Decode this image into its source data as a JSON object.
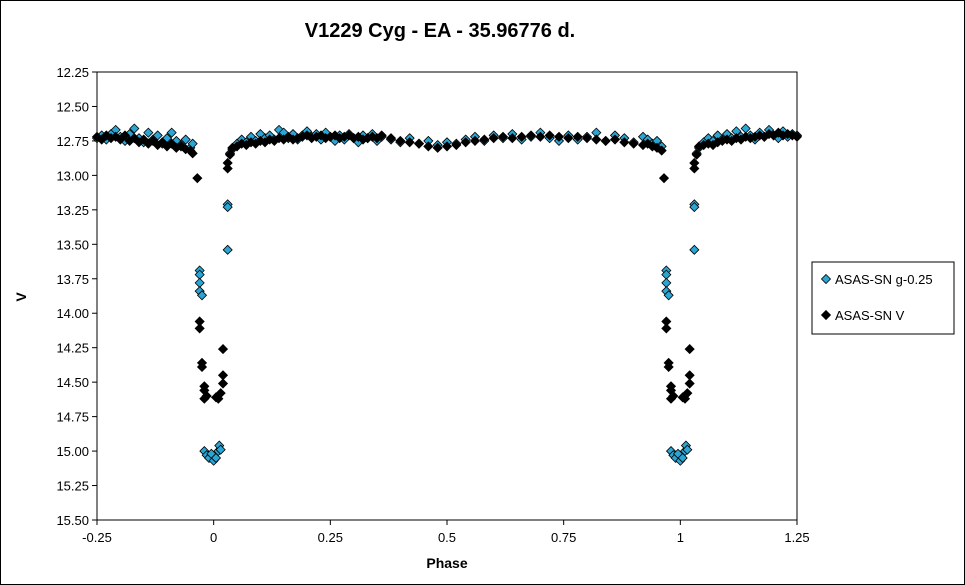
{
  "chart_data": {
    "type": "scatter",
    "title": "V1229 Cyg - EA - 35.96776 d.",
    "xlabel": "Phase",
    "ylabel": "V",
    "xlim": [
      -0.25,
      1.25
    ],
    "ylim": [
      15.5,
      12.25
    ],
    "y_inverted": true,
    "x_ticks": [
      "-0.25",
      "0",
      "0.25",
      "0.5",
      "0.75",
      "1",
      "1.25"
    ],
    "y_ticks": [
      "12.25",
      "12.50",
      "12.75",
      "13.00",
      "13.25",
      "13.50",
      "13.75",
      "14.00",
      "14.25",
      "14.50",
      "14.75",
      "15.00",
      "15.25",
      "15.50"
    ],
    "grid": false,
    "legend_position": "right",
    "series": [
      {
        "name": "ASAS-SN g-0.25",
        "color": "#2aa5d4",
        "marker": "diamond",
        "points": [
          [
            -0.25,
            12.73
          ],
          [
            -0.24,
            12.71
          ],
          [
            -0.23,
            12.74
          ],
          [
            -0.22,
            12.7
          ],
          [
            -0.21,
            12.67
          ],
          [
            -0.2,
            12.72
          ],
          [
            -0.19,
            12.75
          ],
          [
            -0.18,
            12.7
          ],
          [
            -0.17,
            12.66
          ],
          [
            -0.16,
            12.73
          ],
          [
            -0.15,
            12.76
          ],
          [
            -0.14,
            12.69
          ],
          [
            -0.13,
            12.74
          ],
          [
            -0.12,
            12.71
          ],
          [
            -0.11,
            12.77
          ],
          [
            -0.1,
            12.73
          ],
          [
            -0.09,
            12.69
          ],
          [
            -0.08,
            12.75
          ],
          [
            -0.07,
            12.78
          ],
          [
            -0.06,
            12.74
          ],
          [
            -0.05,
            12.8
          ],
          [
            -0.045,
            12.77
          ],
          [
            -0.03,
            13.69
          ],
          [
            -0.03,
            13.72
          ],
          [
            -0.03,
            13.78
          ],
          [
            -0.03,
            13.84
          ],
          [
            -0.025,
            13.87
          ],
          [
            -0.02,
            15.0
          ],
          [
            -0.015,
            15.03
          ],
          [
            -0.01,
            15.05
          ],
          [
            -0.005,
            15.02
          ],
          [
            0.0,
            15.07
          ],
          [
            0.005,
            15.05
          ],
          [
            0.01,
            15.0
          ],
          [
            0.012,
            14.96
          ],
          [
            0.015,
            14.99
          ],
          [
            0.03,
            13.21
          ],
          [
            0.03,
            13.23
          ],
          [
            0.03,
            13.54
          ],
          [
            0.035,
            12.84
          ],
          [
            0.04,
            12.81
          ],
          [
            0.05,
            12.77
          ],
          [
            0.06,
            12.74
          ],
          [
            0.07,
            12.76
          ],
          [
            0.08,
            12.72
          ],
          [
            0.09,
            12.75
          ],
          [
            0.1,
            12.7
          ],
          [
            0.11,
            12.73
          ],
          [
            0.12,
            12.71
          ],
          [
            0.13,
            12.74
          ],
          [
            0.14,
            12.67
          ],
          [
            0.15,
            12.69
          ],
          [
            0.16,
            12.73
          ],
          [
            0.17,
            12.7
          ],
          [
            0.18,
            12.74
          ],
          [
            0.19,
            12.71
          ],
          [
            0.2,
            12.68
          ],
          [
            0.21,
            12.72
          ],
          [
            0.22,
            12.7
          ],
          [
            0.23,
            12.74
          ],
          [
            0.24,
            12.69
          ],
          [
            0.25,
            12.72
          ],
          [
            0.26,
            12.75
          ],
          [
            0.27,
            12.71
          ],
          [
            0.28,
            12.74
          ],
          [
            0.29,
            12.7
          ],
          [
            0.3,
            12.73
          ],
          [
            0.31,
            12.76
          ],
          [
            0.32,
            12.71
          ],
          [
            0.33,
            12.73
          ],
          [
            0.34,
            12.7
          ],
          [
            0.35,
            12.75
          ],
          [
            0.36,
            12.72
          ],
          [
            0.38,
            12.74
          ],
          [
            0.4,
            12.76
          ],
          [
            0.42,
            12.73
          ],
          [
            0.44,
            12.77
          ],
          [
            0.46,
            12.75
          ],
          [
            0.48,
            12.78
          ],
          [
            0.5,
            12.76
          ],
          [
            0.52,
            12.77
          ],
          [
            0.54,
            12.74
          ],
          [
            0.56,
            12.72
          ],
          [
            0.58,
            12.75
          ],
          [
            0.6,
            12.71
          ],
          [
            0.62,
            12.73
          ],
          [
            0.64,
            12.7
          ],
          [
            0.66,
            12.74
          ],
          [
            0.68,
            12.72
          ],
          [
            0.7,
            12.69
          ],
          [
            0.72,
            12.73
          ],
          [
            0.74,
            12.75
          ],
          [
            0.76,
            12.71
          ],
          [
            0.78,
            12.74
          ],
          [
            0.8,
            12.72
          ],
          [
            0.82,
            12.69
          ],
          [
            0.84,
            12.75
          ],
          [
            0.86,
            12.71
          ],
          [
            0.88,
            12.73
          ],
          [
            0.9,
            12.76
          ],
          [
            0.92,
            12.72
          ],
          [
            0.93,
            12.74
          ],
          [
            0.94,
            12.77
          ],
          [
            0.95,
            12.75
          ],
          [
            0.96,
            12.79
          ],
          [
            0.97,
            13.69
          ],
          [
            0.97,
            13.72
          ],
          [
            0.97,
            13.78
          ],
          [
            0.97,
            13.84
          ],
          [
            0.975,
            13.87
          ],
          [
            0.98,
            15.0
          ],
          [
            0.985,
            15.03
          ],
          [
            0.99,
            15.05
          ],
          [
            0.995,
            15.02
          ],
          [
            1.0,
            15.07
          ],
          [
            1.005,
            15.05
          ],
          [
            1.01,
            15.0
          ],
          [
            1.012,
            14.96
          ],
          [
            1.015,
            14.99
          ],
          [
            1.03,
            13.21
          ],
          [
            1.03,
            13.23
          ],
          [
            1.03,
            13.54
          ],
          [
            1.035,
            12.84
          ],
          [
            1.04,
            12.8
          ],
          [
            1.05,
            12.76
          ],
          [
            1.06,
            12.73
          ],
          [
            1.07,
            12.75
          ],
          [
            1.08,
            12.71
          ],
          [
            1.09,
            12.74
          ],
          [
            1.1,
            12.7
          ],
          [
            1.11,
            12.73
          ],
          [
            1.12,
            12.68
          ],
          [
            1.13,
            12.72
          ],
          [
            1.14,
            12.66
          ],
          [
            1.15,
            12.71
          ],
          [
            1.16,
            12.74
          ],
          [
            1.17,
            12.69
          ],
          [
            1.18,
            12.72
          ],
          [
            1.19,
            12.67
          ],
          [
            1.2,
            12.71
          ],
          [
            1.21,
            12.73
          ],
          [
            1.22,
            12.68
          ],
          [
            1.23,
            12.72
          ],
          [
            1.24,
            12.7
          ],
          [
            1.25,
            12.71
          ]
        ]
      },
      {
        "name": "ASAS-SN V",
        "color": "#000000",
        "marker": "diamond",
        "points": [
          [
            -0.25,
            12.72
          ],
          [
            -0.24,
            12.74
          ],
          [
            -0.23,
            12.71
          ],
          [
            -0.22,
            12.73
          ],
          [
            -0.21,
            12.72
          ],
          [
            -0.2,
            12.74
          ],
          [
            -0.19,
            12.71
          ],
          [
            -0.18,
            12.75
          ],
          [
            -0.17,
            12.73
          ],
          [
            -0.16,
            12.76
          ],
          [
            -0.15,
            12.74
          ],
          [
            -0.14,
            12.77
          ],
          [
            -0.13,
            12.75
          ],
          [
            -0.12,
            12.78
          ],
          [
            -0.11,
            12.76
          ],
          [
            -0.1,
            12.79
          ],
          [
            -0.09,
            12.77
          ],
          [
            -0.08,
            12.8
          ],
          [
            -0.07,
            12.79
          ],
          [
            -0.06,
            12.81
          ],
          [
            -0.05,
            12.82
          ],
          [
            -0.045,
            12.84
          ],
          [
            -0.035,
            13.02
          ],
          [
            -0.03,
            14.06
          ],
          [
            -0.03,
            14.11
          ],
          [
            -0.025,
            14.36
          ],
          [
            -0.025,
            14.39
          ],
          [
            -0.02,
            14.53
          ],
          [
            -0.02,
            14.56
          ],
          [
            -0.02,
            14.62
          ],
          [
            -0.015,
            14.6
          ],
          [
            0.005,
            14.61
          ],
          [
            0.01,
            14.62
          ],
          [
            0.015,
            14.58
          ],
          [
            0.02,
            14.26
          ],
          [
            0.02,
            14.45
          ],
          [
            0.02,
            14.51
          ],
          [
            0.03,
            12.91
          ],
          [
            0.03,
            12.95
          ],
          [
            0.035,
            12.85
          ],
          [
            0.04,
            12.8
          ],
          [
            0.05,
            12.79
          ],
          [
            0.06,
            12.77
          ],
          [
            0.07,
            12.78
          ],
          [
            0.08,
            12.76
          ],
          [
            0.09,
            12.77
          ],
          [
            0.1,
            12.75
          ],
          [
            0.11,
            12.76
          ],
          [
            0.12,
            12.74
          ],
          [
            0.13,
            12.75
          ],
          [
            0.14,
            12.73
          ],
          [
            0.15,
            12.74
          ],
          [
            0.16,
            12.72
          ],
          [
            0.17,
            12.74
          ],
          [
            0.18,
            12.73
          ],
          [
            0.19,
            12.72
          ],
          [
            0.2,
            12.71
          ],
          [
            0.21,
            12.73
          ],
          [
            0.22,
            12.72
          ],
          [
            0.23,
            12.71
          ],
          [
            0.24,
            12.73
          ],
          [
            0.25,
            12.72
          ],
          [
            0.26,
            12.71
          ],
          [
            0.27,
            12.73
          ],
          [
            0.28,
            12.72
          ],
          [
            0.29,
            12.71
          ],
          [
            0.3,
            12.73
          ],
          [
            0.31,
            12.72
          ],
          [
            0.32,
            12.74
          ],
          [
            0.33,
            12.73
          ],
          [
            0.34,
            12.72
          ],
          [
            0.35,
            12.73
          ],
          [
            0.36,
            12.71
          ],
          [
            0.38,
            12.73
          ],
          [
            0.4,
            12.75
          ],
          [
            0.42,
            12.76
          ],
          [
            0.44,
            12.77
          ],
          [
            0.46,
            12.79
          ],
          [
            0.48,
            12.8
          ],
          [
            0.5,
            12.79
          ],
          [
            0.52,
            12.78
          ],
          [
            0.54,
            12.76
          ],
          [
            0.56,
            12.75
          ],
          [
            0.58,
            12.74
          ],
          [
            0.6,
            12.73
          ],
          [
            0.62,
            12.72
          ],
          [
            0.64,
            12.73
          ],
          [
            0.66,
            12.72
          ],
          [
            0.68,
            12.71
          ],
          [
            0.7,
            12.72
          ],
          [
            0.72,
            12.71
          ],
          [
            0.74,
            12.72
          ],
          [
            0.76,
            12.73
          ],
          [
            0.78,
            12.72
          ],
          [
            0.8,
            12.73
          ],
          [
            0.82,
            12.74
          ],
          [
            0.84,
            12.75
          ],
          [
            0.86,
            12.74
          ],
          [
            0.88,
            12.76
          ],
          [
            0.9,
            12.77
          ],
          [
            0.92,
            12.78
          ],
          [
            0.93,
            12.77
          ],
          [
            0.94,
            12.79
          ],
          [
            0.95,
            12.8
          ],
          [
            0.96,
            12.82
          ],
          [
            0.965,
            13.02
          ],
          [
            0.97,
            14.06
          ],
          [
            0.97,
            14.11
          ],
          [
            0.975,
            14.36
          ],
          [
            0.975,
            14.39
          ],
          [
            0.98,
            14.53
          ],
          [
            0.98,
            14.56
          ],
          [
            0.98,
            14.62
          ],
          [
            0.985,
            14.6
          ],
          [
            1.005,
            14.61
          ],
          [
            1.01,
            14.62
          ],
          [
            1.015,
            14.58
          ],
          [
            1.02,
            14.26
          ],
          [
            1.02,
            14.45
          ],
          [
            1.02,
            14.51
          ],
          [
            1.03,
            12.91
          ],
          [
            1.03,
            12.95
          ],
          [
            1.035,
            12.85
          ],
          [
            1.04,
            12.79
          ],
          [
            1.05,
            12.78
          ],
          [
            1.06,
            12.77
          ],
          [
            1.07,
            12.78
          ],
          [
            1.08,
            12.76
          ],
          [
            1.09,
            12.75
          ],
          [
            1.1,
            12.74
          ],
          [
            1.11,
            12.75
          ],
          [
            1.12,
            12.73
          ],
          [
            1.13,
            12.74
          ],
          [
            1.14,
            12.72
          ],
          [
            1.15,
            12.73
          ],
          [
            1.16,
            12.72
          ],
          [
            1.17,
            12.71
          ],
          [
            1.18,
            12.72
          ],
          [
            1.19,
            12.7
          ],
          [
            1.2,
            12.71
          ],
          [
            1.21,
            12.69
          ],
          [
            1.22,
            12.71
          ],
          [
            1.23,
            12.7
          ],
          [
            1.24,
            12.71
          ],
          [
            1.25,
            12.72
          ]
        ]
      }
    ]
  }
}
